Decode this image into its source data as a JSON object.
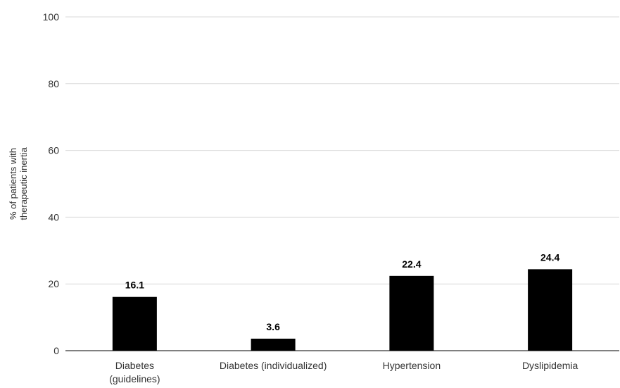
{
  "chart_data": {
    "type": "bar",
    "title": "",
    "xlabel": "",
    "ylabel": [
      "% of patients with",
      "therapeutic inertia"
    ],
    "categories": [
      [
        "Diabetes",
        "(guidelines)"
      ],
      [
        "Diabetes (individualized)"
      ],
      [
        "Hypertension"
      ],
      [
        "Dyslipidemia"
      ]
    ],
    "values": [
      16.1,
      3.6,
      22.4,
      24.4
    ],
    "data_labels": [
      "16.1",
      "3.6",
      "22.4",
      "24.4"
    ],
    "ylim": [
      0,
      100
    ],
    "yticks": [
      0,
      20,
      40,
      60,
      80,
      100
    ],
    "grid": true,
    "legend": "none",
    "colors": {
      "bar": "#000000",
      "grid": "#d9d9d9",
      "axis": "#000000",
      "text": "#333333"
    }
  }
}
